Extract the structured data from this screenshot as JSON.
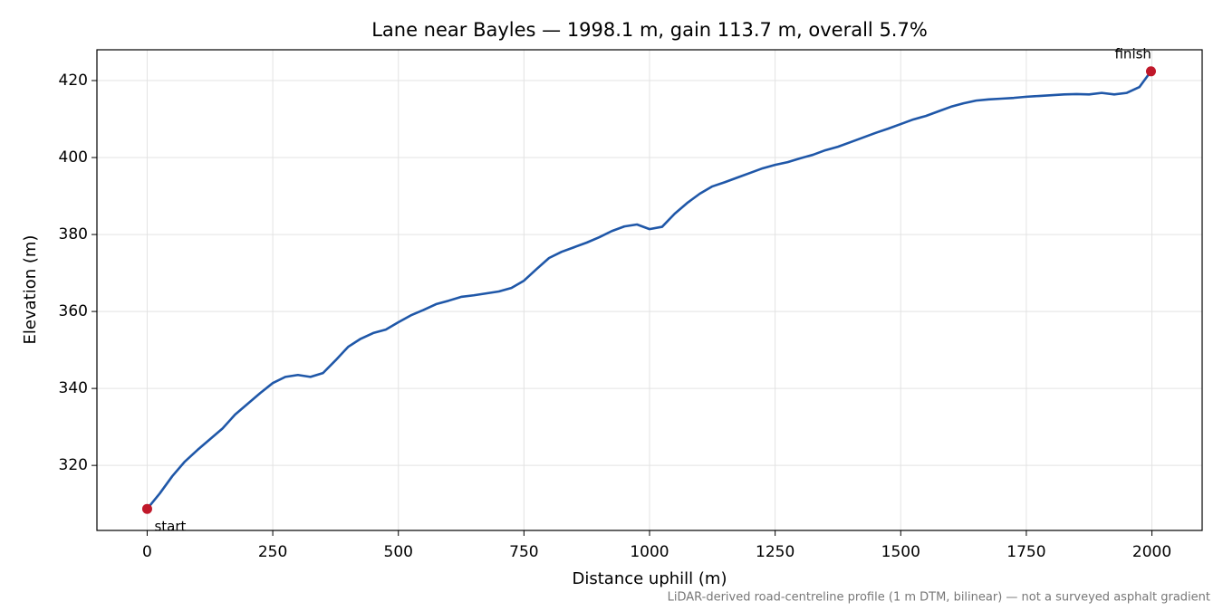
{
  "chart_data": {
    "type": "line",
    "title": "Lane near Bayles — 1998.1 m, gain 113.7 m, overall 5.7%",
    "xlabel": "Distance uphill (m)",
    "ylabel": "Elevation (m)",
    "footnote": "LiDAR-derived road-centreline profile (1 m DTM, bilinear) — not a surveyed asphalt gradient",
    "x": [
      0,
      25,
      50,
      75,
      100,
      125,
      150,
      175,
      200,
      225,
      250,
      275,
      300,
      325,
      350,
      375,
      400,
      425,
      450,
      475,
      500,
      525,
      550,
      575,
      600,
      625,
      650,
      675,
      700,
      725,
      750,
      775,
      800,
      825,
      850,
      875,
      900,
      925,
      950,
      975,
      1000,
      1025,
      1050,
      1075,
      1100,
      1125,
      1150,
      1175,
      1200,
      1225,
      1250,
      1275,
      1300,
      1325,
      1350,
      1375,
      1400,
      1425,
      1450,
      1475,
      1500,
      1525,
      1550,
      1575,
      1600,
      1625,
      1650,
      1675,
      1700,
      1725,
      1750,
      1775,
      1800,
      1825,
      1850,
      1875,
      1900,
      1925,
      1950,
      1975,
      1998.1
    ],
    "series": [
      {
        "name": "Elevation",
        "color": "#1f57a8",
        "values": [
          308.7,
          312.7,
          317.2,
          321,
          324,
          326.8,
          329.6,
          333.2,
          336,
          338.8,
          341.4,
          343,
          343.5,
          343,
          344,
          347.3,
          350.8,
          352.9,
          354.4,
          355.3,
          357.2,
          359,
          360.4,
          361.9,
          362.8,
          363.8,
          364.2,
          364.7,
          365.2,
          366.1,
          368,
          371,
          373.9,
          375.5,
          376.7,
          377.9,
          379.3,
          380.9,
          382.1,
          382.6,
          381.4,
          382,
          385.4,
          388.2,
          390.6,
          392.5,
          393.6,
          394.8,
          396,
          397.2,
          398.1,
          398.8,
          399.8,
          400.7,
          401.9,
          402.8,
          404,
          405.2,
          406.4,
          407.5,
          408.7,
          409.9,
          410.8,
          412,
          413.2,
          414.1,
          414.8,
          415.1,
          415.3,
          415.5,
          415.8,
          416,
          416.2,
          416.4,
          416.5,
          416.4,
          416.8,
          416.4,
          416.8,
          418.3,
          422.4
        ]
      }
    ],
    "markers": [
      {
        "label": "start",
        "x": 0,
        "y": 308.7,
        "color": "#c0182a"
      },
      {
        "label": "finish",
        "x": 1998.1,
        "y": 422.4,
        "color": "#c0182a"
      }
    ],
    "xlim": [
      -100,
      2100
    ],
    "ylim": [
      303.1,
      428
    ],
    "xticks": [
      0,
      250,
      500,
      750,
      1000,
      1250,
      1500,
      1750,
      2000
    ],
    "yticks": [
      320,
      340,
      360,
      380,
      400,
      420
    ],
    "grid": true
  }
}
